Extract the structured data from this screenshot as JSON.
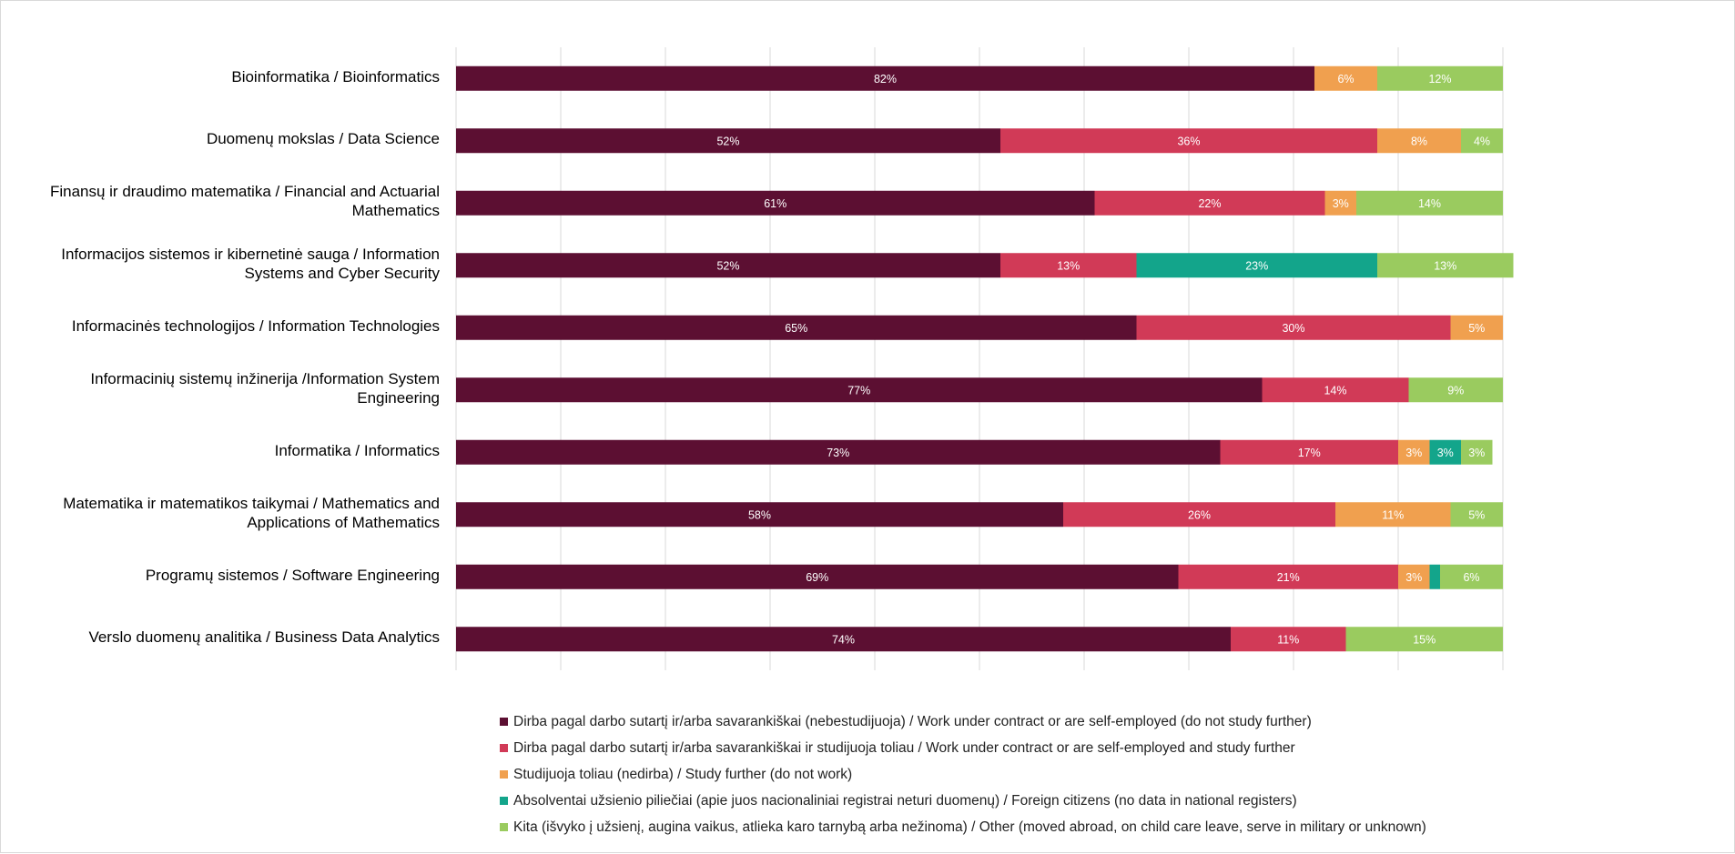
{
  "chart_data": {
    "type": "bar",
    "orientation": "horizontal",
    "stacked": "percent",
    "title": "",
    "xlabel": "",
    "ylabel": "",
    "xlim": [
      0,
      100
    ],
    "grid": true,
    "legend_position": "bottom",
    "categories": [
      "Bioinformatika / Bioinformatics",
      "Duomenų mokslas / Data Science",
      "Finansų ir draudimo matematika / Financial and Actuarial Mathematics",
      "Informacijos sistemos ir kibernetinė sauga / Information Systems and Cyber Security",
      "Informacinės technologijos / Information Technologies",
      "Informacinių sistemų inžinerija /Information System Engineering",
      "Informatika / Informatics",
      "Matematika ir matematikos taikymai / Mathematics and Applications of Mathematics",
      "Programų sistemos / Software Engineering",
      "Verslo duomenų analitika / Business Data Analytics"
    ],
    "series": [
      {
        "name": "Dirba pagal darbo sutartį ir/arba savarankiškai (nebestudijuoja) / Work under contract or are self-employed (do not study further)",
        "color": "#5c0f32",
        "values": [
          82,
          52,
          61,
          52,
          65,
          77,
          73,
          58,
          69,
          74
        ],
        "labels": [
          "82%",
          "52%",
          "61%",
          "52%",
          "65%",
          "77%",
          "73%",
          "58%",
          "69%",
          "74%"
        ]
      },
      {
        "name": "Dirba pagal darbo sutartį ir/arba savarankiškai  ir studijuoja toliau / Work under contract or are self-employed and study further",
        "color": "#d13a57",
        "values": [
          0,
          36,
          22,
          13,
          30,
          14,
          17,
          26,
          21,
          11
        ],
        "labels": [
          "",
          "36%",
          "22%",
          "13%",
          "30%",
          "14%",
          "17%",
          "26%",
          "21%",
          "11%"
        ]
      },
      {
        "name": "Studijuoja toliau (nedirba) / Study further (do not work)",
        "color": "#f0a04f",
        "values": [
          6,
          8,
          3,
          0,
          5,
          0,
          3,
          11,
          3,
          0
        ],
        "labels": [
          "6%",
          "8%",
          "3%",
          "",
          "5%",
          "",
          "3%",
          "11%",
          "3%",
          ""
        ]
      },
      {
        "name": "Absolventai užsienio piliečiai (apie juos nacionaliniai registrai neturi duomenų) / Foreign citizens (no data in national registers)",
        "color": "#13a58b",
        "values": [
          0,
          0,
          0,
          23,
          0,
          0,
          3,
          0,
          1,
          0
        ],
        "labels": [
          "",
          "",
          "",
          "23%",
          "",
          "",
          "3%",
          "",
          "",
          ""
        ]
      },
      {
        "name": "Kita (išvyko į užsienį, augina vaikus, atlieka karo tarnybą arba nežinoma) / Other (moved abroad, on child care leave, serve in military or unknown)",
        "color": "#9acb5f",
        "values": [
          12,
          4,
          14,
          13,
          0,
          9,
          3,
          5,
          6,
          15
        ],
        "labels": [
          "12%",
          "4%",
          "14%",
          "13%",
          "",
          "9%",
          "3%",
          "5%",
          "6%",
          "15%"
        ]
      }
    ]
  },
  "category_label_lines": [
    [
      "Bioinformatika / Bioinformatics"
    ],
    [
      "Duomenų mokslas / Data Science"
    ],
    [
      "Finansų ir draudimo matematika / Financial and Actuarial",
      "Mathematics"
    ],
    [
      "Informacijos sistemos ir kibernetinė sauga / Information",
      "Systems and Cyber Security"
    ],
    [
      "Informacinės technologijos / Information Technologies"
    ],
    [
      "Informacinių sistemų inžinerija /Information System",
      "Engineering"
    ],
    [
      "Informatika / Informatics"
    ],
    [
      "Matematika ir matematikos taikymai / Mathematics and",
      "Applications of Mathematics"
    ],
    [
      "Programų sistemos / Software Engineering"
    ],
    [
      "Verslo duomenų analitika / Business Data Analytics"
    ]
  ]
}
